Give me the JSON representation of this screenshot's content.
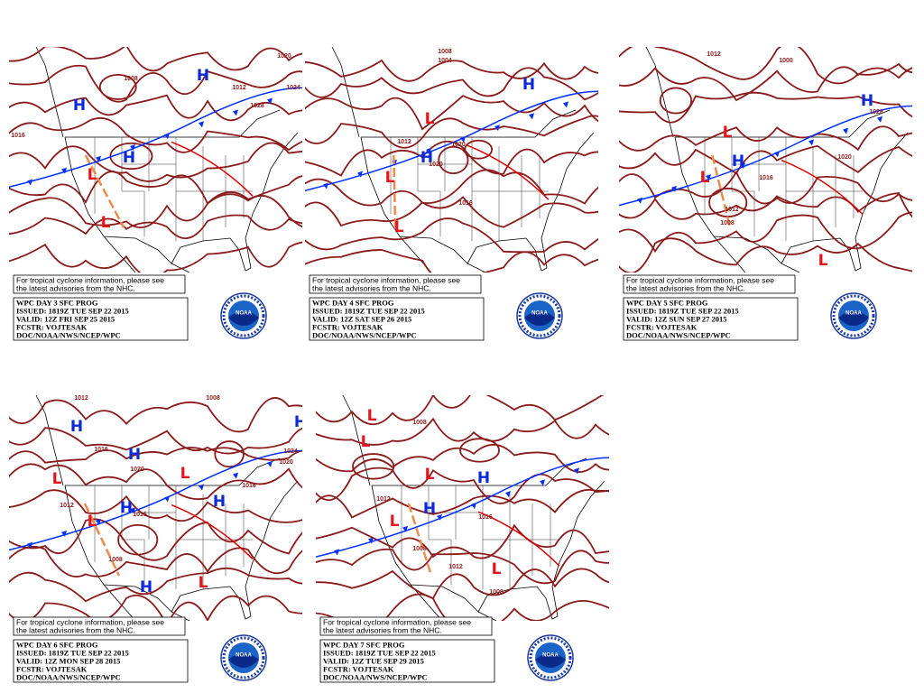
{
  "logo_text": "NOAA",
  "panels": [
    {
      "note": [
        "For tropical cyclone information, please see",
        "the latest advisories from the NHC."
      ],
      "info": [
        "WPC DAY 3 SFC PROG",
        "ISSUED: 1819Z TUE SEP 22 2015",
        "VALID: 12Z FRI SEP 25 2015",
        "FCSTR: VOJTESAK",
        "DOC/NOAA/NWS/NCEP/WPC"
      ],
      "centers": [
        "H",
        "H",
        "H",
        "L",
        "L"
      ],
      "isobars": [
        "1016",
        "1020",
        "1024",
        "1028",
        "1012",
        "1008"
      ]
    },
    {
      "note": [
        "For tropical cyclone information, please see",
        "the latest advisories from the NHC."
      ],
      "info": [
        "WPC DAY 4 SFC PROG",
        "ISSUED: 1819Z TUE SEP 22 2015",
        "VALID: 12Z SAT SEP 26 2015",
        "FCSTR: VOJTESAK",
        "DOC/NOAA/NWS/NCEP/WPC"
      ],
      "centers": [
        "H",
        "L",
        "H",
        "L",
        "L"
      ],
      "isobars": [
        "1008",
        "1004",
        "1012",
        "1020",
        "1020",
        "1016"
      ]
    },
    {
      "note": [
        "For tropical cyclone information, please see",
        "the latest advisories from the NHC."
      ],
      "info": [
        "WPC DAY 5 SFC PROG",
        "ISSUED: 1819Z TUE SEP 22 2015",
        "VALID: 12Z SUN SEP 27 2015",
        "FCSTR: VOJTESAK",
        "DOC/NOAA/NWS/NCEP/WPC"
      ],
      "centers": [
        "H",
        "L",
        "H",
        "L",
        "L"
      ],
      "isobars": [
        "1012",
        "1000",
        "1028",
        "1016",
        "1012",
        "1008",
        "1020"
      ]
    },
    {
      "note": [
        "For tropical cyclone information, please see",
        "the latest advisories from the NHC."
      ],
      "info": [
        "WPC DAY 6 SFC PROG",
        "ISSUED: 1819Z TUE SEP 22 2015",
        "VALID: 12Z MON SEP 28 2015",
        "FCSTR: VOJTESAK",
        "DOC/NOAA/NWS/NCEP/WPC"
      ],
      "centers": [
        "H",
        "H",
        "L",
        "L",
        "H",
        "H",
        "L",
        "L",
        "H",
        "H"
      ],
      "isobars": [
        "1012",
        "1008",
        "1016",
        "1020",
        "1016",
        "1012",
        "1008",
        "1020",
        "1024",
        "1016"
      ]
    },
    {
      "note": [
        "For tropical cyclone information, please see",
        "the latest advisories from the NHC."
      ],
      "info": [
        "WPC DAY 7 SFC PROG",
        "ISSUED: 1819Z TUE SEP 22 2015",
        "VALID: 12Z TUE SEP 29 2015",
        "FCSTR: VOJTESAK",
        "DOC/NOAA/NWS/NCEP/WPC"
      ],
      "centers": [
        "L",
        "L",
        "L",
        "H",
        "H",
        "L",
        "L"
      ],
      "isobars": [
        "1008",
        "1012",
        "1008",
        "1012",
        "1008",
        "1016"
      ]
    }
  ]
}
